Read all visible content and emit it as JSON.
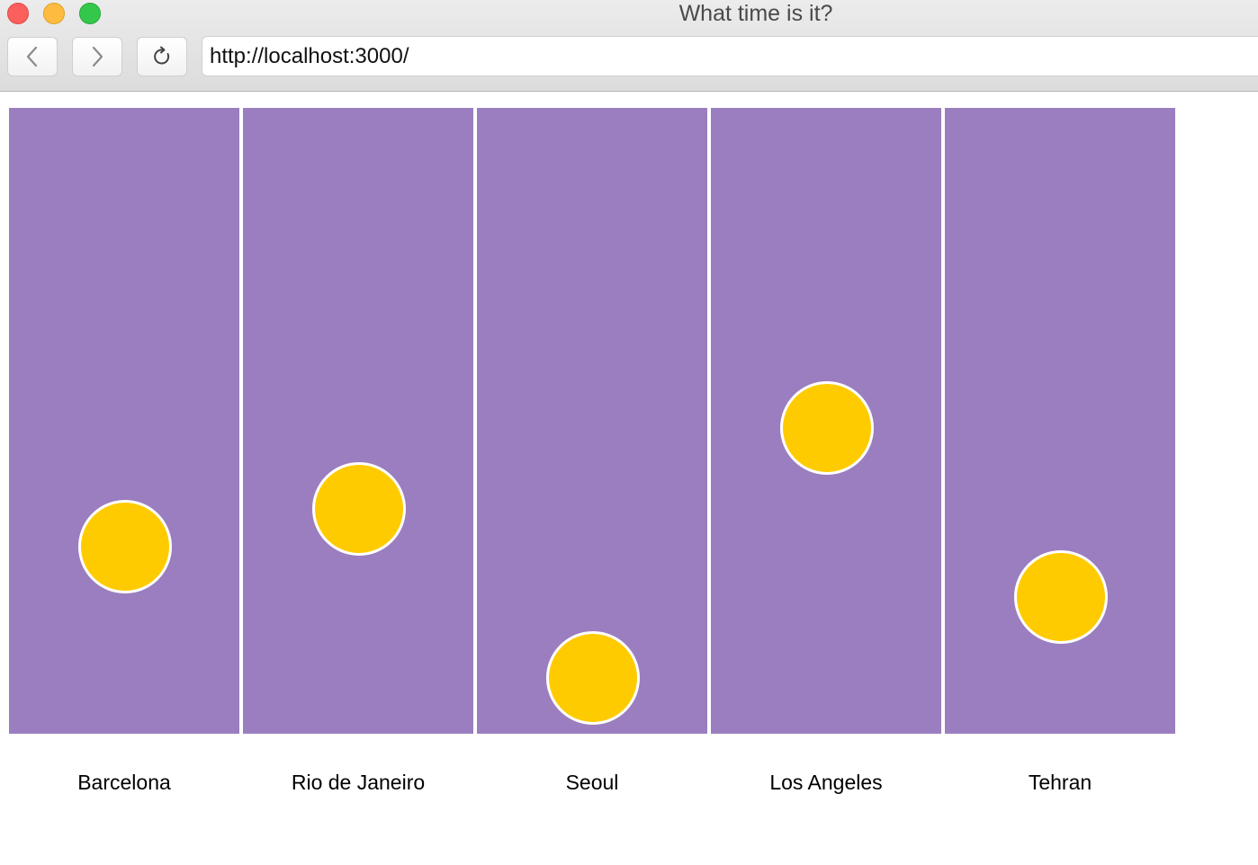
{
  "window": {
    "title": "What time is it?"
  },
  "toolbar": {
    "back_icon": "chevron-left-icon",
    "forward_icon": "chevron-right-icon",
    "reload_icon": "reload-icon",
    "url": "http://localhost:3000/"
  },
  "colors": {
    "column": "#9b7ec0",
    "sun": "#fecb00",
    "sun_border": "#ffffff"
  },
  "cities": [
    {
      "name": "Barcelona",
      "sun_level": 0.3
    },
    {
      "name": "Rio de Janeiro",
      "sun_level": 0.36
    },
    {
      "name": "Seoul",
      "sun_level": 0.09
    },
    {
      "name": "Los Angeles",
      "sun_level": 0.49
    },
    {
      "name": "Tehran",
      "sun_level": 0.22
    }
  ]
}
